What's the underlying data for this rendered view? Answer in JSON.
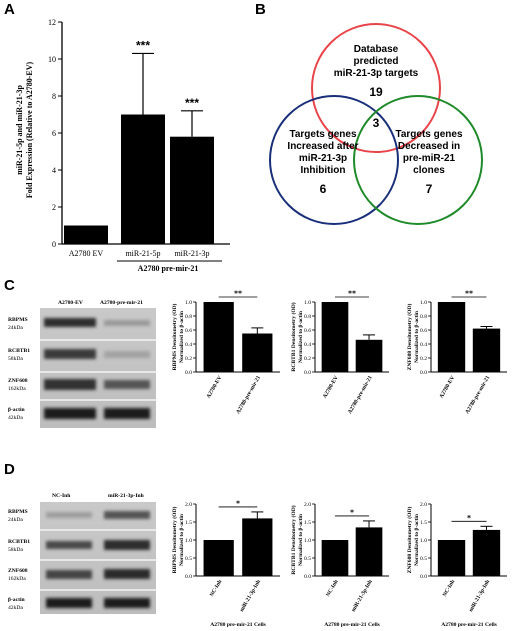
{
  "panels": {
    "A": "A",
    "B": "B",
    "C": "C",
    "D": "D"
  },
  "chart_data": [
    {
      "id": "A",
      "type": "bar",
      "categories": [
        "A2780  EV",
        "miR-21-5p",
        "miR-21-3p"
      ],
      "values": [
        1.0,
        7.0,
        5.8
      ],
      "errors": [
        0,
        3.3,
        1.4
      ],
      "significance": [
        "",
        "***",
        "***"
      ],
      "ylabel_lines": [
        "miR-21-5p  and  miR-21-3p",
        "Fold Expression (Relative to A2780-EV)"
      ],
      "group_label": "A2780 pre-mir-21",
      "ylim": [
        0,
        12
      ],
      "yticks": [
        0,
        2,
        4,
        6,
        8,
        10,
        12
      ]
    },
    {
      "id": "C1",
      "type": "bar",
      "categories": [
        "A2780-EV",
        "A2780-pre-mir-21"
      ],
      "values": [
        1.0,
        0.55
      ],
      "errors": [
        0,
        0.08
      ],
      "significance": "**",
      "ylabel_lines": [
        "RBPMS Densitometry (OD)",
        "Normalized to β-actin"
      ],
      "ylim": [
        0,
        1.0
      ],
      "yticks": [
        "0.0",
        "0.2",
        "0.4",
        "0.6",
        "0.8",
        "1.0"
      ]
    },
    {
      "id": "C2",
      "type": "bar",
      "categories": [
        "A2780-EV",
        "A2780-pre-mir-21"
      ],
      "values": [
        1.0,
        0.46
      ],
      "errors": [
        0,
        0.07
      ],
      "significance": "**",
      "ylabel_lines": [
        "RCBTB1 Densitometry (OD)",
        "Normalized to β-actin"
      ],
      "ylim": [
        0,
        1.0
      ],
      "yticks": [
        "0.0",
        "0.2",
        "0.4",
        "0.6",
        "0.8",
        "1.0"
      ]
    },
    {
      "id": "C3",
      "type": "bar",
      "categories": [
        "A2780-EV",
        "A2780-pre-mir-21"
      ],
      "values": [
        1.0,
        0.62
      ],
      "errors": [
        0,
        0.03
      ],
      "significance": "**",
      "ylabel_lines": [
        "ZNF608 Densitometry (OD)",
        "Normalized to β-actin"
      ],
      "ylim": [
        0,
        1.0
      ],
      "yticks": [
        "0.0",
        "0.2",
        "0.4",
        "0.6",
        "0.8",
        "1.0"
      ]
    },
    {
      "id": "D1",
      "type": "bar",
      "categories": [
        "NC-Inh",
        "miR-21-3p-Inh"
      ],
      "values": [
        1.0,
        1.6
      ],
      "errors": [
        0,
        0.18
      ],
      "significance": "*",
      "ylabel_lines": [
        "RBPMS Densitometry (OD)",
        "Normalized to β-actin"
      ],
      "xlabel": "A2780 pre-mir-21 Cells",
      "ylim": [
        0,
        2.0
      ],
      "yticks": [
        "0.0",
        "0.5",
        "1.0",
        "1.5",
        "2.0"
      ]
    },
    {
      "id": "D2",
      "type": "bar",
      "categories": [
        "NC-Inh",
        "miR-21-3p-Inh"
      ],
      "values": [
        1.0,
        1.35
      ],
      "errors": [
        0,
        0.18
      ],
      "significance": "*",
      "ylabel_lines": [
        "RCBTB1 Densitometry (OD)",
        "Normalized to β-actin"
      ],
      "xlabel": "A2780 pre-mir-21 Cells",
      "ylim": [
        0,
        2.0
      ],
      "yticks": [
        "0.0",
        "0.5",
        "1.0",
        "1.5",
        "2.0"
      ]
    },
    {
      "id": "D3",
      "type": "bar",
      "categories": [
        "NC-Inh",
        "miR-21-3p-Inh"
      ],
      "values": [
        1.0,
        1.28
      ],
      "errors": [
        0,
        0.1
      ],
      "significance": "*",
      "ylabel_lines": [
        "ZNF608 Densitometry (OD)",
        "Normalized to β-actin"
      ],
      "xlabel": "A2780 pre-mir-21 Cells",
      "ylim": [
        0,
        2.0
      ],
      "yticks": [
        "0.0",
        "0.5",
        "1.0",
        "1.5",
        "2.0"
      ]
    }
  ],
  "venn": {
    "top": [
      "Database",
      "predicted",
      "miR-21-3p targets"
    ],
    "top_count": "19",
    "left": [
      "Targets genes",
      "Increased after",
      "miR-21-3p",
      "Inhibition"
    ],
    "left_count": "6",
    "right": [
      "Targets genes",
      "Decreased in",
      "pre-miR-21",
      "clones"
    ],
    "right_count": "7",
    "center_count": "3",
    "colors": {
      "top": "#e8454a",
      "left": "#1a2f7a",
      "right": "#1f8a2a"
    }
  },
  "blots": {
    "C": {
      "columns": [
        "A2780-EV",
        "A2780-pre-mir-21"
      ],
      "rows": [
        {
          "name": "RBPMS",
          "kda": "24kDa"
        },
        {
          "name": "RCBTB1",
          "kda": "58kDa"
        },
        {
          "name": "ZNF608",
          "kda": "162kDa"
        },
        {
          "name": "β-actin",
          "kda": "42kDa"
        }
      ]
    },
    "D": {
      "columns": [
        "NC-Inh",
        "miR-21-3p-Inh"
      ],
      "rows": [
        {
          "name": "RBPMS",
          "kda": "24kDa"
        },
        {
          "name": "RCBTB1",
          "kda": "58kDa"
        },
        {
          "name": "ZNF608",
          "kda": "162kDa"
        },
        {
          "name": "β-actin",
          "kda": "42kDa"
        }
      ]
    }
  }
}
